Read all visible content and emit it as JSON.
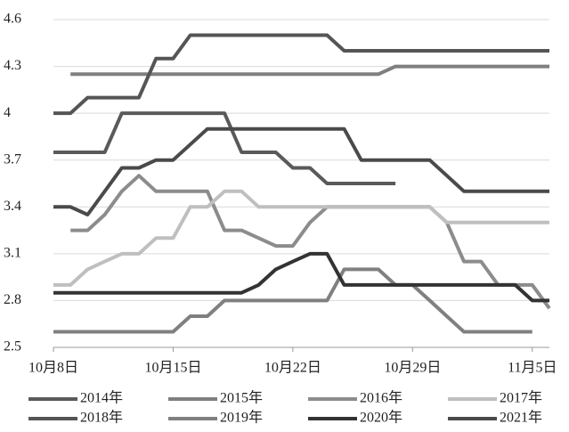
{
  "chart_data": {
    "type": "line",
    "categories": [
      "10月8日",
      null,
      null,
      null,
      null,
      null,
      null,
      "10月15日",
      null,
      null,
      null,
      null,
      null,
      null,
      "10月22日",
      null,
      null,
      null,
      null,
      null,
      null,
      "10月29日",
      null,
      null,
      null,
      null,
      null,
      null,
      "11月5日",
      null
    ],
    "ylim": [
      2.5,
      4.6
    ],
    "yticks": [
      2.5,
      2.8,
      3.1,
      3.4,
      3.7,
      4,
      4.3,
      4.6
    ],
    "grid": true,
    "series": [
      {
        "name": "2014年",
        "color": "#5a5a5a",
        "values": [
          3.75,
          3.75,
          3.75,
          3.75,
          4.0,
          4.0,
          4.0,
          4.0,
          4.0,
          4.0,
          4.0,
          3.75,
          3.75,
          3.75,
          3.65,
          3.65,
          3.55,
          3.55,
          3.55,
          3.55,
          3.55,
          null,
          null,
          null,
          null,
          null,
          null,
          null,
          null,
          null
        ]
      },
      {
        "name": "2015年",
        "color": "#7f7f7f",
        "values": [
          null,
          4.25,
          4.25,
          4.25,
          4.25,
          4.25,
          4.25,
          4.25,
          4.25,
          4.25,
          4.25,
          4.25,
          4.25,
          4.25,
          4.25,
          4.25,
          4.25,
          4.25,
          4.25,
          4.25,
          4.3,
          4.3,
          4.3,
          4.3,
          4.3,
          4.3,
          4.3,
          4.3,
          4.3,
          4.3
        ]
      },
      {
        "name": "2016年",
        "color": "#8c8c8c",
        "values": [
          null,
          3.25,
          3.25,
          3.35,
          3.5,
          3.6,
          3.5,
          3.5,
          3.5,
          3.5,
          3.25,
          3.25,
          3.2,
          3.15,
          3.15,
          3.3,
          3.4,
          3.4,
          3.4,
          3.4,
          3.4,
          3.4,
          3.4,
          3.3,
          3.05,
          3.05,
          2.9,
          2.9,
          2.9,
          2.75
        ]
      },
      {
        "name": "2017年",
        "color": "#bfbfbf",
        "values": [
          2.9,
          2.9,
          3.0,
          3.05,
          3.1,
          3.1,
          3.2,
          3.2,
          3.4,
          3.4,
          3.5,
          3.5,
          3.4,
          3.4,
          3.4,
          3.4,
          3.4,
          3.4,
          3.4,
          3.4,
          3.4,
          3.4,
          3.4,
          3.3,
          3.3,
          3.3,
          3.3,
          3.3,
          3.3,
          3.3
        ]
      },
      {
        "name": "2018年",
        "color": "#555555",
        "values": [
          4.0,
          4.0,
          4.1,
          4.1,
          4.1,
          4.1,
          4.35,
          4.35,
          4.5,
          4.5,
          4.5,
          4.5,
          4.5,
          4.5,
          4.5,
          4.5,
          4.5,
          4.4,
          4.4,
          4.4,
          4.4,
          4.4,
          4.4,
          4.4,
          4.4,
          4.4,
          4.4,
          4.4,
          4.4,
          4.4
        ]
      },
      {
        "name": "2019年",
        "color": "#808080",
        "values": [
          2.6,
          2.6,
          2.6,
          2.6,
          2.6,
          2.6,
          2.6,
          2.6,
          2.7,
          2.7,
          2.8,
          2.8,
          2.8,
          2.8,
          2.8,
          2.8,
          2.8,
          3.0,
          3.0,
          3.0,
          2.9,
          2.9,
          2.8,
          2.7,
          2.6,
          2.6,
          2.6,
          2.6,
          2.6,
          null
        ]
      },
      {
        "name": "2020年",
        "color": "#333333",
        "values": [
          2.85,
          2.85,
          2.85,
          2.85,
          2.85,
          2.85,
          2.85,
          2.85,
          2.85,
          2.85,
          2.85,
          2.85,
          2.9,
          3.0,
          3.05,
          3.1,
          3.1,
          2.9,
          2.9,
          2.9,
          2.9,
          2.9,
          2.9,
          2.9,
          2.9,
          2.9,
          2.9,
          2.9,
          2.8,
          2.8
        ]
      },
      {
        "name": "2021年",
        "color": "#4a4a4a",
        "values": [
          3.4,
          3.4,
          3.35,
          3.5,
          3.65,
          3.65,
          3.7,
          3.7,
          3.8,
          3.9,
          3.9,
          3.9,
          3.9,
          3.9,
          3.9,
          3.9,
          3.9,
          3.9,
          3.7,
          3.7,
          3.7,
          3.7,
          3.7,
          3.6,
          3.5,
          3.5,
          3.5,
          3.5,
          3.5,
          3.5
        ]
      }
    ]
  }
}
